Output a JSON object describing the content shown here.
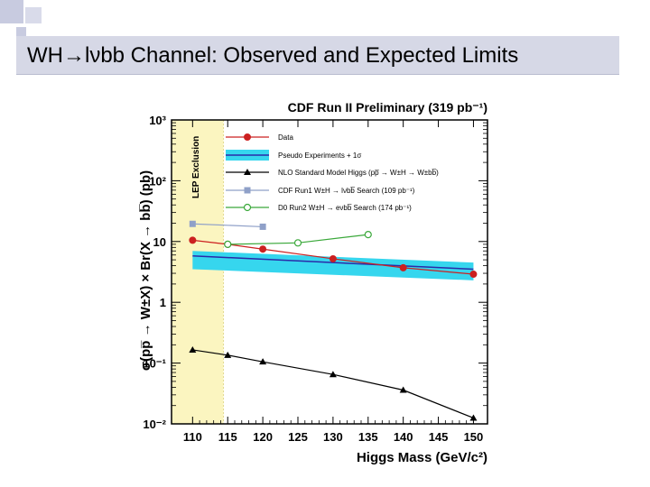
{
  "slide": {
    "title": "WH→lνbb Channel:   Observed and Expected Limits",
    "accent_color": "#c8cbe0",
    "title_bar_color": "#d6d8e6"
  },
  "chart_data": {
    "type": "line",
    "title": "CDF Run II Preliminary (319 pb⁻¹)",
    "xlabel": "Higgs Mass (GeV/c²)",
    "ylabel": "σ(pp̅ → W±X) × Br(X → bb̅) (pb)",
    "x_scale": "linear",
    "y_scale": "log",
    "xlim": [
      107,
      152
    ],
    "ylim": [
      0.01,
      1000
    ],
    "x_ticks": [
      "110",
      "115",
      "120",
      "125",
      "130",
      "135",
      "140",
      "145",
      "150"
    ],
    "y_ticks": [
      {
        "value": 0.01,
        "label": "10⁻²"
      },
      {
        "value": 0.1,
        "label": "10⁻¹"
      },
      {
        "value": 1,
        "label": "1"
      },
      {
        "value": 10,
        "label": "10"
      },
      {
        "value": 100,
        "label": "10²"
      },
      {
        "value": 1000,
        "label": "10³"
      }
    ],
    "lep_exclusion": {
      "label": "LEP Exclusion",
      "x_max": 114.4,
      "color": "#fbf5c0"
    },
    "band": {
      "label": "Pseudo Experiments + 1σ",
      "x": [
        110,
        150
      ],
      "upper": [
        7.0,
        4.5
      ],
      "lower": [
        3.5,
        2.3
      ],
      "center": [
        5.8,
        3.5
      ],
      "color": "#36d6ee",
      "center_color": "#2a2aa8"
    },
    "series": [
      {
        "name": "Data",
        "color": "#cc2020",
        "marker": "circle-filled",
        "x": [
          110,
          115,
          120,
          130,
          140,
          150
        ],
        "y": [
          10.5,
          9.0,
          7.5,
          5.2,
          3.7,
          2.9
        ]
      },
      {
        "name": "NLO Standard Model Higgs (pp̅ → W±H → W±bb̅)",
        "color": "#000000",
        "marker": "triangle",
        "x": [
          110,
          115,
          120,
          130,
          140,
          150
        ],
        "y": [
          0.165,
          0.135,
          0.105,
          0.065,
          0.036,
          0.0125
        ]
      },
      {
        "name": "CDF Run1 W±H → lνbb̅ Search (109 pb⁻¹)",
        "color": "#8fa0c8",
        "marker": "square",
        "x": [
          110,
          120
        ],
        "y": [
          19.5,
          17.5
        ]
      },
      {
        "name": "D0 Run2 W±H → eνbb̅ Search (174 pb⁻¹)",
        "color": "#3aa83a",
        "marker": "circle-open",
        "x": [
          115,
          125,
          135
        ],
        "y": [
          9.0,
          9.5,
          13.0
        ]
      }
    ],
    "legend": {
      "placement": "top-right"
    }
  }
}
